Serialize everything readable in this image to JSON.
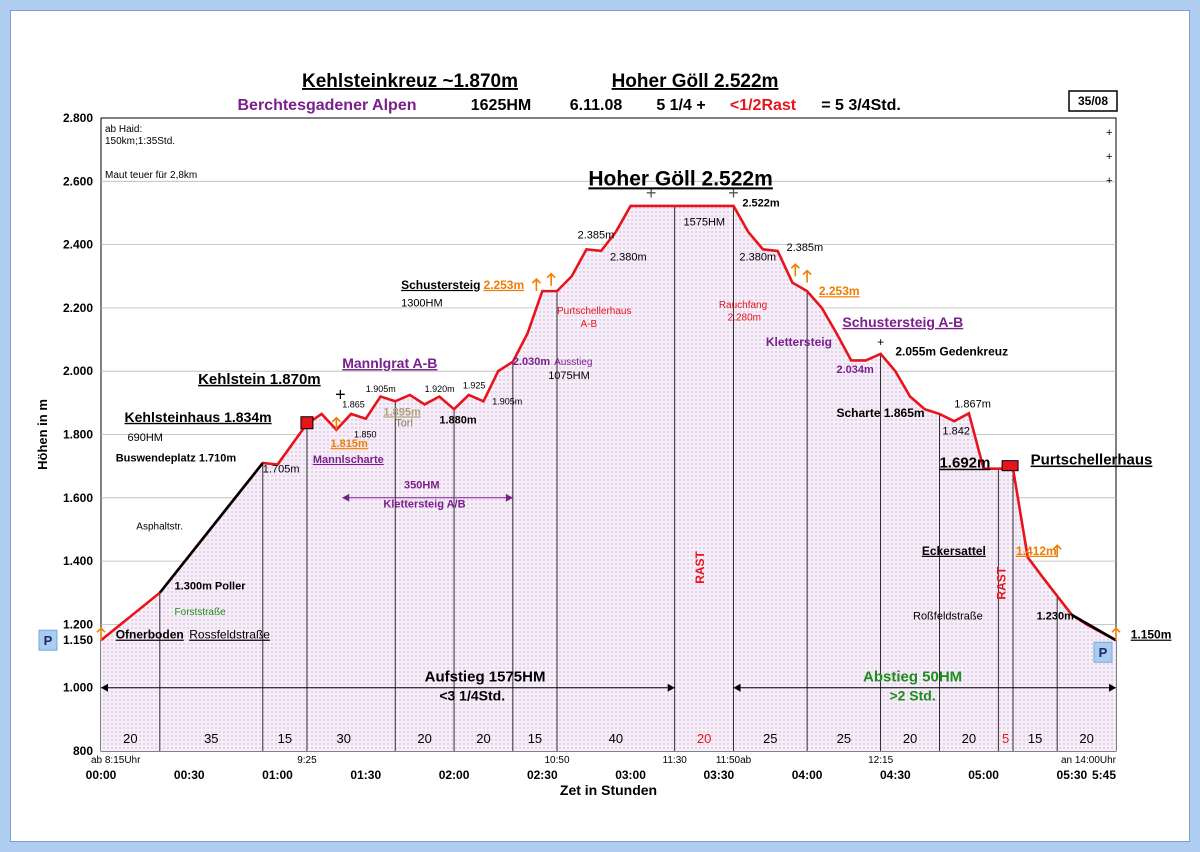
{
  "header": {
    "title_part1": "Kehlsteinkreuz ~1.870m",
    "title_part2": "Hoher Göll 2.522m",
    "subtitle_region": "Berchtesgadener Alpen",
    "subtitle_hm": "1625HM",
    "subtitle_date": "6.11.08",
    "subtitle_time": "5 1/4 +",
    "subtitle_rast": "<1/2Rast",
    "subtitle_total": "= 5 3/4Std.",
    "badge": "35/08"
  },
  "colors": {
    "profile": "#e8141c",
    "profile_black": "#000000",
    "purple": "#7a1f8c",
    "orange": "#f07c00",
    "green": "#1e8c1e",
    "fill": "#f3ecf6",
    "parking": "#a8cdf0"
  },
  "chart_data": {
    "type": "area",
    "title": "Hoher Göll 2.522m",
    "xlabel": "Zet in Stunden",
    "ylabel": "Höhen in m",
    "ylim": [
      800,
      2800
    ],
    "xlim": [
      0,
      345
    ],
    "y_ticks": [
      "800",
      "1.000",
      "1.150",
      "1.200",
      "1.400",
      "1.600",
      "1.800",
      "2.000",
      "2.200",
      "2.400",
      "2.600",
      "2.800"
    ],
    "y_tick_values": [
      800,
      1000,
      1150,
      1200,
      1400,
      1600,
      1800,
      2000,
      2200,
      2400,
      2600,
      2800
    ],
    "x_ticks": [
      {
        "label": "00:00",
        "x": 0
      },
      {
        "label": "00:30",
        "x": 30
      },
      {
        "label": "01:00",
        "x": 60
      },
      {
        "label": "01:30",
        "x": 90
      },
      {
        "label": "02:00",
        "x": 120
      },
      {
        "label": "02:30",
        "x": 150
      },
      {
        "label": "03:00",
        "x": 180
      },
      {
        "label": "03:30",
        "x": 210
      },
      {
        "label": "04:00",
        "x": 240
      },
      {
        "label": "04:30",
        "x": 270
      },
      {
        "label": "05:00",
        "x": 300
      },
      {
        "label": "05:30",
        "x": 330
      },
      {
        "label": "5:45",
        "x": 345
      }
    ],
    "clock_labels": [
      {
        "label": "ab 8:15Uhr",
        "x": 5
      },
      {
        "label": "9:25",
        "x": 70
      },
      {
        "label": "10:50",
        "x": 155
      },
      {
        "label": "11:30",
        "x": 195
      },
      {
        "label": "11:50ab",
        "x": 215
      },
      {
        "label": "12:15",
        "x": 265
      },
      {
        "label": "an 14:00Uhr",
        "x": 345
      }
    ],
    "segment_minutes": [
      {
        "label": "20",
        "x": 10
      },
      {
        "label": "35",
        "x": 37.5
      },
      {
        "label": "15",
        "x": 62.5
      },
      {
        "label": "30",
        "x": 82.5
      },
      {
        "label": "20",
        "x": 110
      },
      {
        "label": "20",
        "x": 130
      },
      {
        "label": "15",
        "x": 147.5
      },
      {
        "label": "40",
        "x": 175
      },
      {
        "label": "20",
        "x": 205,
        "highlight": true
      },
      {
        "label": "25",
        "x": 227.5
      },
      {
        "label": "25",
        "x": 252.5
      },
      {
        "label": "20",
        "x": 275
      },
      {
        "label": "20",
        "x": 295
      },
      {
        "label": "5",
        "x": 307.5,
        "highlight": true
      },
      {
        "label": "15",
        "x": 317.5
      },
      {
        "label": "20",
        "x": 335
      }
    ],
    "vlines_x": [
      20,
      55,
      70,
      100,
      120,
      140,
      155,
      195,
      215,
      240,
      265,
      285,
      305,
      310,
      325
    ],
    "series": [
      {
        "x": [
          0,
          20,
          55,
          60,
          70,
          75,
          80,
          85,
          90,
          95,
          100,
          105,
          110,
          115,
          120,
          125,
          130,
          135,
          140,
          145,
          150,
          155,
          160,
          165,
          170,
          175,
          180,
          187,
          195,
          215,
          220,
          225,
          230,
          235,
          240,
          245,
          250,
          255,
          260,
          265,
          270,
          275,
          280,
          285,
          290,
          295,
          300,
          305,
          310,
          315,
          320,
          325,
          330,
          335,
          345
        ],
        "y": [
          1150,
          1300,
          1710,
          1705,
          1834,
          1865,
          1815,
          1865,
          1850,
          1920,
          1905,
          1925,
          1895,
          1920,
          1880,
          1925,
          1905,
          2000,
          2030,
          2120,
          2253,
          2253,
          2300,
          2385,
          2380,
          2440,
          2522,
          2522,
          2522,
          2522,
          2440,
          2385,
          2380,
          2280,
          2253,
          2200,
          2120,
          2034,
          2034,
          2055,
          2000,
          1920,
          1880,
          1865,
          1842,
          1867,
          1692,
          1692,
          1692,
          1412,
          1350,
          1290,
          1230,
          1200,
          1150
        ]
      }
    ],
    "annotations": [
      {
        "text": "Kehlsteinkreuz ~1.870m",
        "kind": "title"
      },
      {
        "text": "Ofnerboden",
        "x": 5,
        "y": 1155
      },
      {
        "text": "Rossfeldstraße",
        "x": 30,
        "y": 1155
      },
      {
        "text": "Forststraße",
        "x": 25,
        "y": 1230
      },
      {
        "text": "1.300m Poller",
        "x": 25,
        "y": 1310
      },
      {
        "text": "Asphaltstr.",
        "x": 12,
        "y": 1500
      },
      {
        "text": "Buswendeplatz 1.710m",
        "x": 5,
        "y": 1715
      },
      {
        "text": "1.705m",
        "x": 55,
        "y": 1680
      },
      {
        "text": "Kehlsteinhaus 1.834m",
        "x": 8,
        "y": 1840
      },
      {
        "text": "690HM",
        "x": 9,
        "y": 1780
      },
      {
        "text": "Kehlstein 1.870m",
        "x": 33,
        "y": 1960
      },
      {
        "text": "Mannlgrat A-B",
        "x": 82,
        "y": 2010
      },
      {
        "text": "1.865",
        "x": 82,
        "y": 1885
      },
      {
        "text": "1.850",
        "x": 86,
        "y": 1790
      },
      {
        "text": "1.815m",
        "x": 78,
        "y": 1760
      },
      {
        "text": "Mannlscharte",
        "x": 72,
        "y": 1710
      },
      {
        "text": "1.905m",
        "x": 90,
        "y": 1935
      },
      {
        "text": "1.895m",
        "x": 96,
        "y": 1860
      },
      {
        "text": "Torl",
        "x": 100,
        "y": 1825
      },
      {
        "text": "1.920m",
        "x": 110,
        "y": 1935
      },
      {
        "text": "1.925",
        "x": 123,
        "y": 1945
      },
      {
        "text": "1.905m",
        "x": 133,
        "y": 1895
      },
      {
        "text": "1.880m",
        "x": 115,
        "y": 1835
      },
      {
        "text": "350HM",
        "x": 103,
        "y": 1630
      },
      {
        "text": "Klettersteig A/B",
        "x": 96,
        "y": 1570
      },
      {
        "text": "2.030m",
        "x": 140,
        "y": 2020
      },
      {
        "text": "Ausstieg",
        "x": 154,
        "y": 2020
      },
      {
        "text": "1075HM",
        "x": 152,
        "y": 1975
      },
      {
        "text": "Schustersteig",
        "x": 102,
        "y": 2260
      },
      {
        "text": "2.253m",
        "x": 130,
        "y": 2260
      },
      {
        "text": "1300HM",
        "x": 102,
        "y": 2205
      },
      {
        "text": "Purtschellerhaus",
        "x": 155,
        "y": 2180
      },
      {
        "text": "A-B",
        "x": 163,
        "y": 2140
      },
      {
        "text": "2.385m",
        "x": 162,
        "y": 2420
      },
      {
        "text": "2.380m",
        "x": 173,
        "y": 2350
      },
      {
        "text": "1575HM",
        "x": 198,
        "y": 2460
      },
      {
        "text": "2.522m",
        "x": 218,
        "y": 2520
      },
      {
        "text": "2.380m",
        "x": 217,
        "y": 2350
      },
      {
        "text": "2.385m",
        "x": 233,
        "y": 2380
      },
      {
        "text": "Rauchfang",
        "x": 210,
        "y": 2200
      },
      {
        "text": "2.280m",
        "x": 213,
        "y": 2160
      },
      {
        "text": "2.253m",
        "x": 244,
        "y": 2240
      },
      {
        "text": "Schustersteig A-B",
        "x": 252,
        "y": 2140
      },
      {
        "text": "Klettersteig",
        "x": 226,
        "y": 2080
      },
      {
        "text": "2.034m",
        "x": 250,
        "y": 1995
      },
      {
        "text": "2.055m Gedenkreuz",
        "x": 270,
        "y": 2050
      },
      {
        "text": "Scharte 1.865m",
        "x": 250,
        "y": 1855
      },
      {
        "text": "1.867m",
        "x": 290,
        "y": 1885
      },
      {
        "text": "1.842",
        "x": 286,
        "y": 1800
      },
      {
        "text": "1.692m",
        "x": 285,
        "y": 1695
      },
      {
        "text": "Purtschellerhaus",
        "x": 316,
        "y": 1705
      },
      {
        "text": "Eckersattel",
        "x": 279,
        "y": 1420
      },
      {
        "text": "1.412m",
        "x": 311,
        "y": 1420
      },
      {
        "text": "Roßfeldstraße",
        "x": 276,
        "y": 1215
      },
      {
        "text": "1.230m",
        "x": 318,
        "y": 1215
      },
      {
        "text": "1.150m",
        "x": 350,
        "y": 1155
      },
      {
        "text": "Aufstieg 1575HM",
        "x": 110,
        "y": 1020
      },
      {
        "text": "<3 1/4Std.",
        "x": 115,
        "y": 960
      },
      {
        "text": "Abstieg 50HM",
        "x": 259,
        "y": 1020
      },
      {
        "text": "",
        "x": 0,
        "y": 0
      },
      {
        "text": ">2 Std.",
        "x": 268,
        "y": 960
      },
      {
        "text": "RAST",
        "x": 205,
        "y": 1380
      },
      {
        "text": "RAST",
        "x": 307.5,
        "y": 1330
      }
    ],
    "info_notes": [
      "ab Haid:",
      "150km;1:35Std.",
      "Maut teuer für 2,8km"
    ],
    "parking_label": "P"
  }
}
